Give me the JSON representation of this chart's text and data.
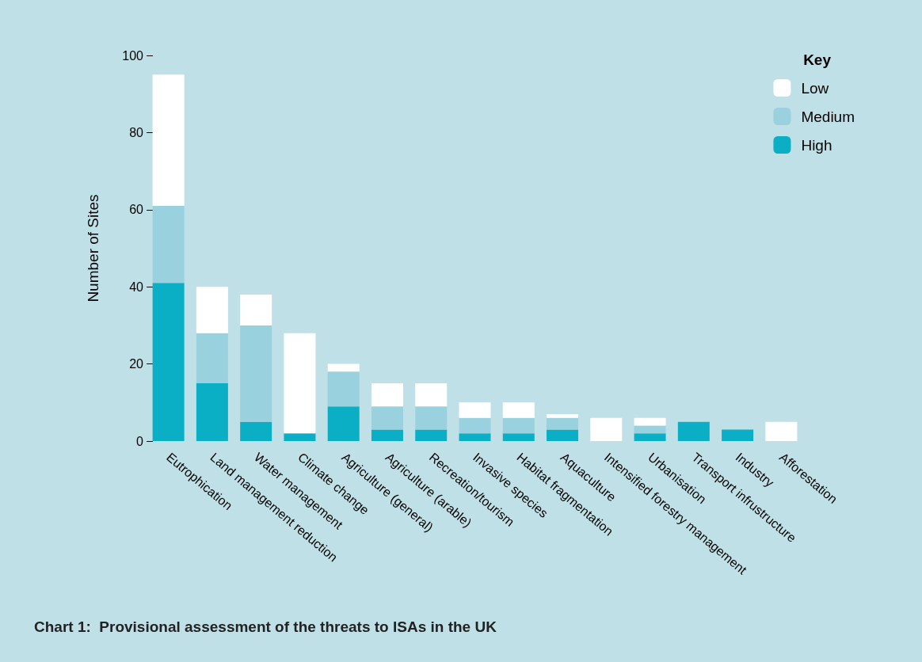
{
  "chart_data": {
    "type": "bar",
    "stacked": true,
    "title": "Chart 1:  Provisional assessment of the threats to ISAs in the UK",
    "ylabel": "Number of Sites",
    "legend_title": "Key",
    "legend": "top right",
    "grid": false,
    "categories": [
      "Eutrophication",
      "Land management reduction",
      "Water management",
      "Climate change",
      "Agriculture (general)",
      "Agriculture (arable)",
      "Recreation/tourism",
      "Invasive species",
      "Habitat fragmentation",
      "Aquaculture",
      "Intensified forestry management",
      "Urbanisation",
      "Transport infrustructure",
      "Industry",
      "Afforestation"
    ],
    "ylim": [
      0,
      100
    ],
    "yticks": [
      0,
      20,
      40,
      60,
      80,
      100
    ],
    "series": [
      {
        "name": "High",
        "color": "#0aafc6",
        "values": [
          41,
          15,
          5,
          2,
          9,
          3,
          3,
          2,
          2,
          3,
          0,
          2,
          5,
          3,
          0
        ]
      },
      {
        "name": "Medium",
        "color": "#99d1df",
        "values": [
          20,
          13,
          25,
          0,
          9,
          6,
          6,
          4,
          4,
          3,
          0,
          2,
          0,
          0,
          0
        ]
      },
      {
        "name": "Low",
        "color": "#ffffff",
        "values": [
          34,
          12,
          8,
          26,
          2,
          6,
          6,
          4,
          4,
          1,
          6,
          2,
          0,
          0,
          5
        ]
      }
    ]
  }
}
